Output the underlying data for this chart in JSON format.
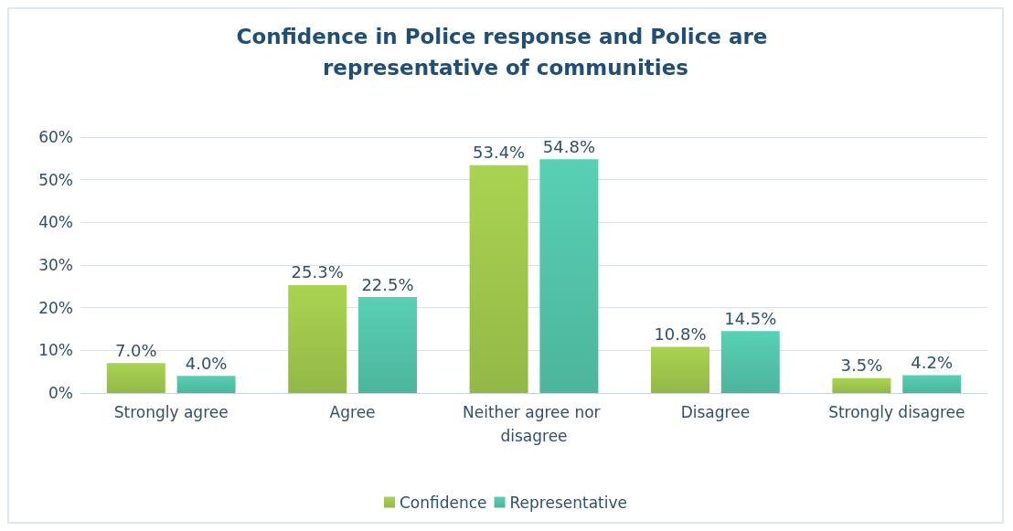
{
  "chart_data": {
    "type": "bar",
    "title": "Confidence in Police response and Police are representative of communities",
    "categories": [
      "Strongly agree",
      "Agree",
      "Neither agree nor disagree",
      "Disagree",
      "Strongly disagree"
    ],
    "series": [
      {
        "name": "Confidence",
        "color": "#94b847",
        "values": [
          7.0,
          25.3,
          53.4,
          10.8,
          3.5
        ],
        "value_labels": [
          "7.0%",
          "25.3%",
          "53.4%",
          "10.8%",
          "3.5%"
        ]
      },
      {
        "name": "Representative",
        "color": "#4db59c",
        "values": [
          4.0,
          22.5,
          54.8,
          14.5,
          4.2
        ],
        "value_labels": [
          "4.0%",
          "22.5%",
          "54.8%",
          "14.5%",
          "4.2%"
        ]
      }
    ],
    "ylim": [
      0,
      60
    ],
    "yticks": [
      {
        "value": 0,
        "label": "0%"
      },
      {
        "value": 10,
        "label": "10%"
      },
      {
        "value": 20,
        "label": "20%"
      },
      {
        "value": 30,
        "label": "30%"
      },
      {
        "value": 40,
        "label": "40%"
      },
      {
        "value": 50,
        "label": "50%"
      },
      {
        "value": 60,
        "label": "60%"
      }
    ],
    "grid": "y",
    "legend": "bottom"
  }
}
